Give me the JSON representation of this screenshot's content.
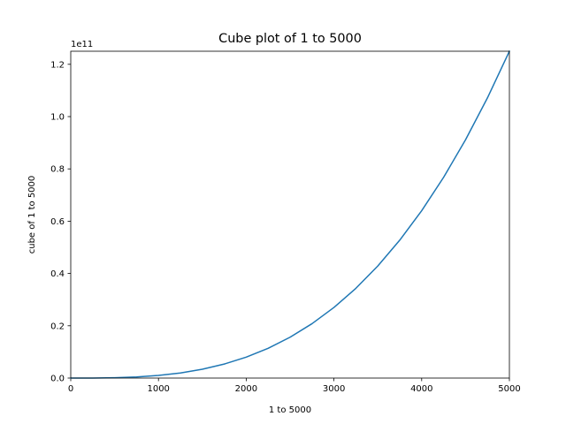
{
  "chart_data": {
    "type": "line",
    "title": "Cube plot of 1 to 5000",
    "xlabel": "1 to 5000",
    "ylabel": "cube of 1 to 5000",
    "y_offset_label": "1e11",
    "xlim": [
      0,
      5000
    ],
    "ylim": [
      0,
      125000000000.0
    ],
    "x_ticks": [
      0,
      1000,
      2000,
      3000,
      4000,
      5000
    ],
    "x_tick_labels": [
      "0",
      "1000",
      "2000",
      "3000",
      "4000",
      "5000"
    ],
    "y_ticks": [
      0,
      20000000000.0,
      40000000000.0,
      60000000000.0,
      80000000000.0,
      100000000000.0,
      120000000000.0
    ],
    "y_tick_labels": [
      "0.0",
      "0.2",
      "0.4",
      "0.6",
      "0.8",
      "1.0",
      "1.2"
    ],
    "grid": false,
    "series": [
      {
        "color": "#1f77b4",
        "x": [
          1,
          250,
          500,
          750,
          1000,
          1250,
          1500,
          1750,
          2000,
          2250,
          2500,
          2750,
          3000,
          3250,
          3500,
          3750,
          4000,
          4250,
          4500,
          4750,
          5000
        ],
        "y": [
          1,
          15625000,
          125000000,
          421875000,
          1000000000,
          1953125000,
          3375000000,
          5359375000,
          8000000000,
          11390625000,
          15625000000,
          20796875000,
          27000000000,
          34328125000,
          42875000000,
          52734375000,
          64000000000,
          76765625000,
          91125000000,
          107171875000,
          125000000000
        ]
      }
    ]
  }
}
